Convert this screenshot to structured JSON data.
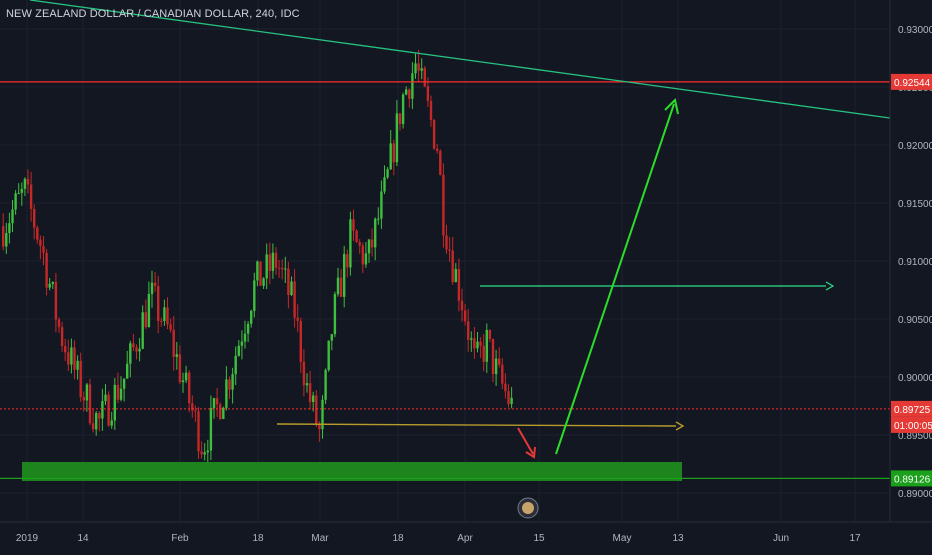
{
  "header": {
    "symbol_title": "NEW ZEALAND DOLLAR / CANADIAN DOLLAR, 240, IDC"
  },
  "colors": {
    "background": "#131722",
    "up": "#3fbf3f",
    "down": "#c62828",
    "trendline": "#26c281",
    "resistance": "#ff2d2d",
    "support_zone": "#1f8a1f",
    "support_line": "#1aa01a",
    "yellow_line": "#b89b2b",
    "target_arrow": "#2bdc2b",
    "target_line": "#2ee08a",
    "down_arrow": "#e53935",
    "axis_text": "#b2b5be",
    "grid": "#1e222d"
  },
  "icons": {
    "replay": "replay-icon"
  },
  "chart_data": {
    "type": "candlestick",
    "title": "NEW ZEALAND DOLLAR / CANADIAN DOLLAR, 240, IDC",
    "ylim": [
      0.8875,
      0.9325
    ],
    "grid": true,
    "y_ticks": [
      "0.93000",
      "0.92500",
      "0.92000",
      "0.91500",
      "0.91000",
      "0.90500",
      "0.90000",
      "0.89500",
      "0.89000"
    ],
    "x_ticks": [
      "2019",
      "14",
      "Feb",
      "18",
      "Mar",
      "18",
      "Apr",
      "15",
      "May",
      "13",
      "Jun",
      "17"
    ],
    "price_labels": {
      "resistance": "0.92544",
      "last_price": "0.89725",
      "countdown": "01:00:05",
      "support": "0.89126"
    },
    "levels": {
      "resistance": 0.92544,
      "last_price": 0.89725,
      "support": 0.89126
    },
    "anchors": [
      {
        "t": 0,
        "v": 0.913
      },
      {
        "t": 0.05,
        "v": 0.916
      },
      {
        "t": 0.09,
        "v": 0.911
      },
      {
        "t": 0.13,
        "v": 0.904
      },
      {
        "t": 0.18,
        "v": 0.899
      },
      {
        "t": 0.22,
        "v": 0.896
      },
      {
        "t": 0.28,
        "v": 0.9
      },
      {
        "t": 0.34,
        "v": 0.907
      },
      {
        "t": 0.38,
        "v": 0.904
      },
      {
        "t": 0.42,
        "v": 0.899
      },
      {
        "t": 0.46,
        "v": 0.894
      },
      {
        "t": 0.52,
        "v": 0.9
      },
      {
        "t": 0.58,
        "v": 0.908
      },
      {
        "t": 0.63,
        "v": 0.91
      },
      {
        "t": 0.67,
        "v": 0.906
      },
      {
        "t": 0.7,
        "v": 0.899
      },
      {
        "t": 0.73,
        "v": 0.895
      },
      {
        "t": 0.76,
        "v": 0.905
      },
      {
        "t": 0.8,
        "v": 0.912
      },
      {
        "t": 0.84,
        "v": 0.91
      },
      {
        "t": 0.88,
        "v": 0.916
      },
      {
        "t": 0.92,
        "v": 0.924
      },
      {
        "t": 0.95,
        "v": 0.927
      },
      {
        "t": 1.0,
        "v": 0.92
      }
    ],
    "anchors_after_peak": [
      {
        "t": 0,
        "v": 0.92
      },
      {
        "t": 0.08,
        "v": 0.914
      },
      {
        "t": 0.2,
        "v": 0.91
      },
      {
        "t": 0.35,
        "v": 0.906
      },
      {
        "t": 0.5,
        "v": 0.901
      },
      {
        "t": 0.65,
        "v": 0.903
      },
      {
        "t": 0.8,
        "v": 0.9
      },
      {
        "t": 1.0,
        "v": 0.8972
      }
    ]
  }
}
